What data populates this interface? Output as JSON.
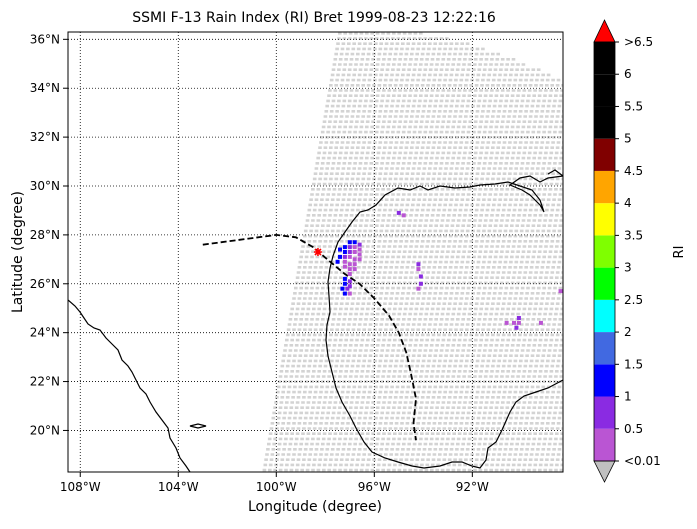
{
  "chart_data": {
    "type": "scatter",
    "title": "SSMI F-13 Rain Index (RI) Bret 1999-08-23 12:22:16",
    "xlabel": "Longitude (degree)",
    "ylabel": "Latitude (degree)",
    "xlim": [
      -108.5,
      -88.3
    ],
    "ylim": [
      18.3,
      36.3
    ],
    "x_ticks": [
      -108,
      -104,
      -100,
      -96,
      -92
    ],
    "x_tick_labels": [
      "108°W",
      "104°W",
      "100°W",
      "96°W",
      "92°W"
    ],
    "y_ticks": [
      20,
      22,
      24,
      26,
      28,
      30,
      32,
      34,
      36
    ],
    "y_tick_labels": [
      "20°N",
      "22°N",
      "24°N",
      "26°N",
      "28°N",
      "30°N",
      "32°N",
      "34°N",
      "36°N"
    ],
    "grid": "dotted",
    "swath_color": "#d3d3d3",
    "colorbar": {
      "label": "RI",
      "boundaries": [
        0.01,
        0.5,
        1,
        1.5,
        2,
        2.5,
        3,
        3.5,
        4,
        4.5,
        5,
        5.5,
        6,
        6.5
      ],
      "colors": [
        "#c0c0c0",
        "#ba55d3",
        "#8a2be2",
        "#0000ff",
        "#4169e1",
        "#00ffff",
        "#00ff00",
        "#7fff00",
        "#ffff00",
        "#ffa500",
        "#800000",
        "#000000",
        "#000000",
        "#000000",
        "#ff0000"
      ],
      "tick_labels": [
        "<0.01",
        "0.5",
        "1",
        "1.5",
        "2",
        "2.5",
        "3",
        "3.5",
        "4",
        "4.5",
        "5",
        "5.5",
        "6",
        ">6.5"
      ]
    },
    "track": {
      "points": [
        [
          -103,
          27.6
        ],
        [
          -101.5,
          27.8
        ],
        [
          -100,
          28.0
        ],
        [
          -99.2,
          27.9
        ],
        [
          -98.5,
          27.5
        ],
        [
          -97.8,
          26.9
        ],
        [
          -97.2,
          26.4
        ],
        [
          -96.6,
          26.0
        ],
        [
          -96.0,
          25.4
        ],
        [
          -95.4,
          24.7
        ],
        [
          -95.0,
          24.0
        ],
        [
          -94.7,
          23.2
        ],
        [
          -94.5,
          22.3
        ],
        [
          -94.3,
          21.3
        ],
        [
          -94.4,
          20.3
        ],
        [
          -94.3,
          19.6
        ]
      ],
      "marker": [
        -98.3,
        27.3
      ]
    },
    "rain_points": [
      {
        "x": -97.0,
        "y": 27.7,
        "v": 1.2
      },
      {
        "x": -96.8,
        "y": 27.7,
        "v": 1.2
      },
      {
        "x": -96.6,
        "y": 27.6,
        "v": 0.8
      },
      {
        "x": -97.2,
        "y": 27.5,
        "v": 1.2
      },
      {
        "x": -97.0,
        "y": 27.5,
        "v": 0.8
      },
      {
        "x": -96.8,
        "y": 27.5,
        "v": 0.3
      },
      {
        "x": -96.6,
        "y": 27.4,
        "v": 0.3
      },
      {
        "x": -97.4,
        "y": 27.4,
        "v": 1.2
      },
      {
        "x": -97.2,
        "y": 27.3,
        "v": 1.2
      },
      {
        "x": -97.0,
        "y": 27.3,
        "v": 0.8
      },
      {
        "x": -96.8,
        "y": 27.3,
        "v": 0.3
      },
      {
        "x": -96.6,
        "y": 27.2,
        "v": 0.3
      },
      {
        "x": -97.4,
        "y": 27.1,
        "v": 1.2
      },
      {
        "x": -97.2,
        "y": 27.1,
        "v": 0.8
      },
      {
        "x": -97.0,
        "y": 27.1,
        "v": 0.3
      },
      {
        "x": -96.8,
        "y": 27.0,
        "v": 0.3
      },
      {
        "x": -96.6,
        "y": 27.0,
        "v": 0.3
      },
      {
        "x": -97.5,
        "y": 26.9,
        "v": 1.2
      },
      {
        "x": -97.2,
        "y": 26.9,
        "v": 0.3
      },
      {
        "x": -97.0,
        "y": 26.8,
        "v": 0.3
      },
      {
        "x": -96.8,
        "y": 26.8,
        "v": 0.3
      },
      {
        "x": -97.2,
        "y": 26.7,
        "v": 0.3
      },
      {
        "x": -97.0,
        "y": 26.6,
        "v": 0.3
      },
      {
        "x": -96.8,
        "y": 26.6,
        "v": 0.3
      },
      {
        "x": -97.0,
        "y": 26.4,
        "v": 0.3
      },
      {
        "x": -97.2,
        "y": 26.2,
        "v": 1.2
      },
      {
        "x": -97.0,
        "y": 26.1,
        "v": 0.8
      },
      {
        "x": -97.2,
        "y": 26.0,
        "v": 1.2
      },
      {
        "x": -97.0,
        "y": 25.9,
        "v": 0.8
      },
      {
        "x": -97.3,
        "y": 25.8,
        "v": 1.2
      },
      {
        "x": -97.1,
        "y": 25.8,
        "v": 0.8
      },
      {
        "x": -97.2,
        "y": 25.6,
        "v": 1.2
      },
      {
        "x": -97.0,
        "y": 25.6,
        "v": 0.3
      },
      {
        "x": -95.0,
        "y": 28.9,
        "v": 0.8
      },
      {
        "x": -94.8,
        "y": 28.8,
        "v": 0.3
      },
      {
        "x": -94.2,
        "y": 26.8,
        "v": 0.8
      },
      {
        "x": -94.2,
        "y": 26.6,
        "v": 0.3
      },
      {
        "x": -94.1,
        "y": 26.3,
        "v": 0.8
      },
      {
        "x": -94.1,
        "y": 26.0,
        "v": 0.8
      },
      {
        "x": -94.2,
        "y": 25.8,
        "v": 0.3
      },
      {
        "x": -90.1,
        "y": 24.6,
        "v": 0.8
      },
      {
        "x": -90.1,
        "y": 24.4,
        "v": 0.3
      },
      {
        "x": -90.6,
        "y": 24.4,
        "v": 0.3
      },
      {
        "x": -90.3,
        "y": 24.4,
        "v": 0.3
      },
      {
        "x": -90.2,
        "y": 24.2,
        "v": 0.8
      },
      {
        "x": -89.2,
        "y": 24.4,
        "v": 0.3
      },
      {
        "x": -88.4,
        "y": 25.7,
        "v": 0.3
      }
    ]
  }
}
